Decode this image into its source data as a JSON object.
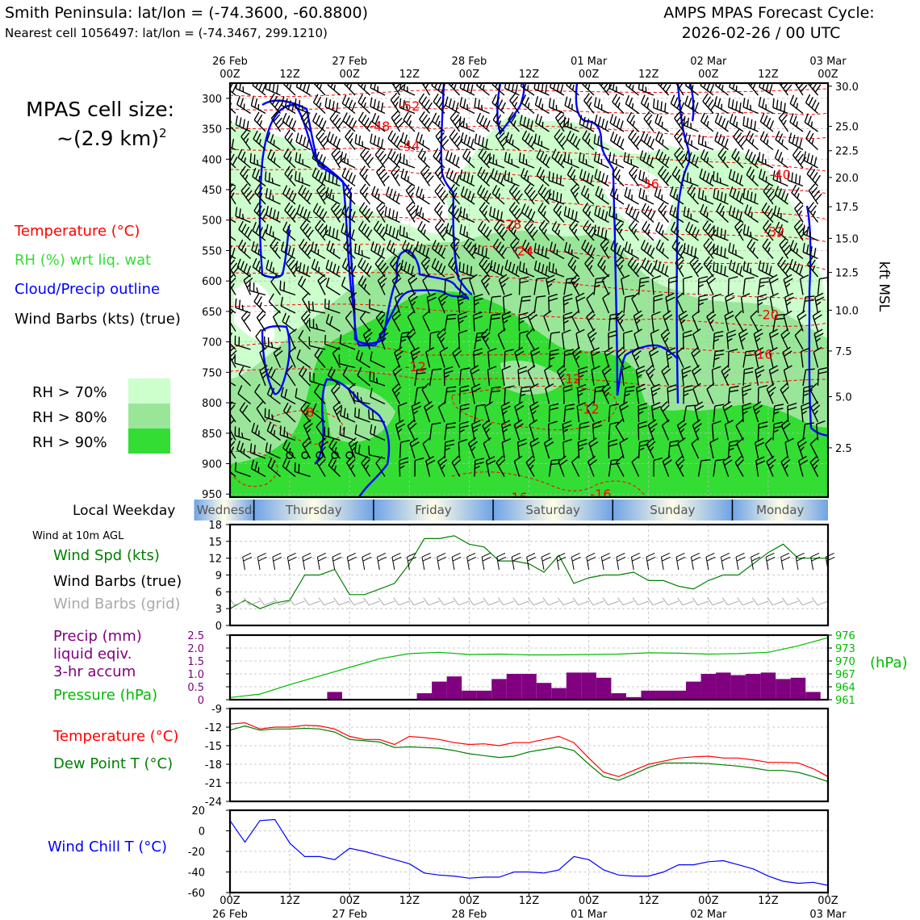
{
  "header": {
    "site_line": "Smith Peninsula: lat/lon = (-74.3600, -60.8800)",
    "cell_line": "Nearest cell 1056497: lat/lon = (-74.3467, 299.1210)",
    "cycle_line1": "AMPS MPAS Forecast Cycle:",
    "cycle_line2": "2026-02-26 / 00 UTC"
  },
  "legend": {
    "cell_size_line1": "MPAS cell size:",
    "cell_size_line2": "~(2.9 km)",
    "cell_size_sup": "2",
    "temperature": "Temperature (°C)",
    "rh": "RH (%) wrt liq. wat",
    "cloud": "Cloud/Precip outline",
    "wind": "Wind Barbs (kts) (true)",
    "rh70": "RH > 70%",
    "rh80": "RH > 80%",
    "rh90": "RH > 90%"
  },
  "colors": {
    "temp": "#ff0000",
    "rh_label": "#33dd33",
    "cloud": "#0000ff",
    "rh70": "#ccffcc",
    "rh80": "#99e699",
    "rh90": "#33dd33",
    "wind_green": "#008000",
    "precip": "#800080",
    "pressure": "#00bb00",
    "dewpoint": "#008000",
    "windchill": "#0000ff",
    "grid_barb": "#aaaaaa"
  },
  "time_axis": {
    "top_labels": [
      {
        "l1": "26 Feb",
        "l2": "00Z"
      },
      {
        "l1": "",
        "l2": "12Z"
      },
      {
        "l1": "27 Feb",
        "l2": "00Z"
      },
      {
        "l1": "",
        "l2": "12Z"
      },
      {
        "l1": "28 Feb",
        "l2": "00Z"
      },
      {
        "l1": "",
        "l2": "12Z"
      },
      {
        "l1": "01 Mar",
        "l2": "00Z"
      },
      {
        "l1": "",
        "l2": "12Z"
      },
      {
        "l1": "02 Mar",
        "l2": "00Z"
      },
      {
        "l1": "",
        "l2": "12Z"
      },
      {
        "l1": "03 Mar",
        "l2": "00Z"
      }
    ],
    "bottom_labels": [
      {
        "l1": "00Z",
        "l2": "26 Feb"
      },
      {
        "l1": "12Z",
        "l2": ""
      },
      {
        "l1": "00Z",
        "l2": "27 Feb"
      },
      {
        "l1": "12Z",
        "l2": ""
      },
      {
        "l1": "00Z",
        "l2": "28 Feb"
      },
      {
        "l1": "12Z",
        "l2": ""
      },
      {
        "l1": "00Z",
        "l2": "01 Mar"
      },
      {
        "l1": "12Z",
        "l2": ""
      },
      {
        "l1": "00Z",
        "l2": "02 Mar"
      },
      {
        "l1": "12Z",
        "l2": ""
      },
      {
        "l1": "00Z",
        "l2": "03 Mar"
      }
    ]
  },
  "weekday": {
    "label": "Local Weekday",
    "days": [
      {
        "name": "Wednesday",
        "start": -0.3,
        "end": 0.2
      },
      {
        "name": "Thursday",
        "start": 0.2,
        "end": 1.2
      },
      {
        "name": "Friday",
        "start": 1.2,
        "end": 2.2
      },
      {
        "name": "Saturday",
        "start": 2.2,
        "end": 3.2
      },
      {
        "name": "Sunday",
        "start": 3.2,
        "end": 4.2
      },
      {
        "name": "Monday",
        "start": 4.2,
        "end": 5.0
      }
    ]
  },
  "chart_data": [
    {
      "type": "heatmap",
      "title": "Vertical cross-section (time-height)",
      "ylabel_left": "Pressure (hPa)",
      "ylabel_right": "kft MSL",
      "ylim_hpa": [
        955,
        275
      ],
      "left_ticks": [
        300,
        350,
        400,
        450,
        500,
        550,
        600,
        650,
        700,
        750,
        800,
        850,
        900,
        950
      ],
      "right_ticks": [
        {
          "p": 280,
          "label": "30.0"
        },
        {
          "p": 346,
          "label": "25.0"
        },
        {
          "p": 386,
          "label": "22.5"
        },
        {
          "p": 430,
          "label": "20.0"
        },
        {
          "p": 478,
          "label": "17.5"
        },
        {
          "p": 530,
          "label": "15.0"
        },
        {
          "p": 586,
          "label": "12.5"
        },
        {
          "p": 648,
          "label": "10.0"
        },
        {
          "p": 715,
          "label": "7.5"
        },
        {
          "p": 790,
          "label": "5.0"
        },
        {
          "p": 874,
          "label": "2.5"
        }
      ],
      "temperature_contour_labels": [
        {
          "t": 1.5,
          "p": 312,
          "label": "-52"
        },
        {
          "t": 1.25,
          "p": 345,
          "label": "-48"
        },
        {
          "t": 1.5,
          "p": 377,
          "label": "-44"
        },
        {
          "t": 3.5,
          "p": 440,
          "label": "-36"
        },
        {
          "t": 4.6,
          "p": 425,
          "label": "-40"
        },
        {
          "t": 2.35,
          "p": 506,
          "label": "-28"
        },
        {
          "t": 4.55,
          "p": 518,
          "label": "-32"
        },
        {
          "t": 2.45,
          "p": 550,
          "label": "-24"
        },
        {
          "t": 4.5,
          "p": 655,
          "label": "-20"
        },
        {
          "t": 4.45,
          "p": 720,
          "label": "-16"
        },
        {
          "t": 1.55,
          "p": 740,
          "label": "-12"
        },
        {
          "t": 2.85,
          "p": 760,
          "label": "-12"
        },
        {
          "t": 3.0,
          "p": 810,
          "label": "-12"
        },
        {
          "t": 0.65,
          "p": 815,
          "label": "-8"
        },
        {
          "t": 2.4,
          "p": 955,
          "label": "-16"
        },
        {
          "t": 3.1,
          "p": 950,
          "label": "-16"
        }
      ]
    },
    {
      "type": "line",
      "title": "Wind at 10m AGL",
      "series_labels": [
        "Wind Spd (kts)",
        "Wind Barbs (true)",
        "Wind Barbs (grid)"
      ],
      "ylim": [
        0,
        18
      ],
      "yticks": [
        0,
        3,
        6,
        9,
        12,
        15,
        18
      ],
      "series": [
        {
          "name": "Wind Spd (kts)",
          "x_days": [
            0,
            0.125,
            0.25,
            0.375,
            0.5,
            0.625,
            0.75,
            0.875,
            1.0,
            1.125,
            1.25,
            1.375,
            1.5,
            1.625,
            1.75,
            1.875,
            2.0,
            2.125,
            2.25,
            2.375,
            2.5,
            2.625,
            2.75,
            2.875,
            3.0,
            3.125,
            3.25,
            3.375,
            3.5,
            3.625,
            3.75,
            3.875,
            4.0,
            4.125,
            4.25,
            4.375,
            4.5,
            4.625,
            4.75,
            4.875,
            5.0
          ],
          "values": [
            3,
            4.5,
            3,
            4,
            4.5,
            9,
            9,
            10,
            5.5,
            5.5,
            6.5,
            7.5,
            11,
            15.5,
            15.5,
            16,
            14.5,
            14,
            11.5,
            11.5,
            11,
            9.5,
            12.5,
            7.5,
            8.5,
            9,
            9,
            9.5,
            8,
            8,
            7,
            6.5,
            8,
            9,
            9,
            11,
            13,
            14.5,
            12,
            12,
            12
          ]
        }
      ]
    },
    {
      "type": "bar",
      "title": "Precip (mm) liquid eqiv. 3-hr accum / Pressure (hPa)",
      "precip_labels": [
        "Precip (mm)",
        "liquid eqiv.",
        "3-hr accum"
      ],
      "pressure_label": "Pressure (hPa)",
      "right_unit": "(hPa)",
      "ylim_precip": [
        0,
        2.5
      ],
      "yticks_precip": [
        "0",
        "0.5",
        "1.0",
        "1.5",
        "2.0",
        "2.5"
      ],
      "ylim_pressure": [
        961,
        976
      ],
      "yticks_pressure": [
        "961",
        "964",
        "967",
        "970",
        "973",
        "976"
      ],
      "precip_bars": {
        "x_days": [
          0.875,
          1.625,
          1.75,
          1.875,
          2.0,
          2.125,
          2.25,
          2.375,
          2.5,
          2.625,
          2.75,
          2.875,
          3.0,
          3.125,
          3.25,
          3.375,
          3.5,
          3.625,
          3.75,
          3.875,
          4.0,
          4.125,
          4.25,
          4.375,
          4.5,
          4.625,
          4.75,
          4.875
        ],
        "values": [
          0.3,
          0.25,
          0.7,
          0.9,
          0.35,
          0.35,
          0.8,
          1.0,
          1.0,
          0.65,
          0.45,
          1.05,
          1.05,
          0.85,
          0.25,
          0.1,
          0.35,
          0.35,
          0.35,
          0.7,
          1.0,
          1.05,
          0.95,
          1.0,
          1.05,
          0.8,
          0.85,
          0.3
        ]
      },
      "pressure_line": {
        "x_days": [
          0,
          0.25,
          0.5,
          0.75,
          1.0,
          1.25,
          1.5,
          1.75,
          2.0,
          2.25,
          2.5,
          2.75,
          3.0,
          3.25,
          3.5,
          3.75,
          4.0,
          4.25,
          4.5,
          4.75,
          5.0
        ],
        "values": [
          961.5,
          962.3,
          964.5,
          966.5,
          968.5,
          970.5,
          971.7,
          972,
          971.5,
          971.6,
          971.4,
          971.4,
          971.5,
          971.6,
          971.9,
          971.8,
          971.6,
          971.7,
          972.0,
          973.5,
          975.4
        ]
      }
    },
    {
      "type": "line",
      "title": "Temperature / Dew Point",
      "series_labels": [
        "Temperature (°C)",
        "Dew Point T (°C)"
      ],
      "ylim": [
        -24,
        -9
      ],
      "yticks": [
        -24,
        -21,
        -18,
        -15,
        -12,
        -9
      ],
      "series": [
        {
          "name": "Temperature (°C)",
          "x_days": [
            0,
            0.125,
            0.25,
            0.375,
            0.5,
            0.625,
            0.75,
            0.875,
            1.0,
            1.125,
            1.25,
            1.375,
            1.5,
            1.625,
            1.75,
            1.875,
            2.0,
            2.125,
            2.25,
            2.375,
            2.5,
            2.625,
            2.75,
            2.875,
            3.0,
            3.125,
            3.25,
            3.375,
            3.5,
            3.625,
            3.75,
            3.875,
            4.0,
            4.125,
            4.25,
            4.375,
            4.5,
            4.625,
            4.75,
            4.875,
            5.0
          ],
          "values": [
            -11.5,
            -11.3,
            -12.3,
            -12,
            -12,
            -11.7,
            -11.8,
            -12.3,
            -13.5,
            -14,
            -14,
            -14.8,
            -13.5,
            -13.7,
            -14,
            -14.5,
            -14.8,
            -14.7,
            -15,
            -14.5,
            -14.5,
            -14,
            -13.5,
            -14.5,
            -17,
            -19.3,
            -20,
            -19,
            -18,
            -17.5,
            -17,
            -16.8,
            -16.7,
            -17,
            -17,
            -17.3,
            -17.7,
            -17.7,
            -17.8,
            -18.7,
            -20
          ]
        },
        {
          "name": "Dew Point T (°C)",
          "x_days": [
            0,
            0.125,
            0.25,
            0.375,
            0.5,
            0.625,
            0.75,
            0.875,
            1.0,
            1.125,
            1.25,
            1.375,
            1.5,
            1.625,
            1.75,
            1.875,
            2.0,
            2.125,
            2.25,
            2.375,
            2.5,
            2.625,
            2.75,
            2.875,
            3.0,
            3.125,
            3.25,
            3.375,
            3.5,
            3.625,
            3.75,
            3.875,
            4.0,
            4.125,
            4.25,
            4.375,
            4.5,
            4.625,
            4.75,
            4.875,
            5.0
          ],
          "values": [
            -12.5,
            -11.8,
            -12.5,
            -12.3,
            -12.3,
            -12.2,
            -12.3,
            -12.8,
            -14,
            -14.2,
            -14.4,
            -15.3,
            -15.2,
            -15.3,
            -15.4,
            -15.8,
            -16.3,
            -16.6,
            -16.9,
            -16.7,
            -16,
            -15.6,
            -15.2,
            -15.8,
            -18,
            -20,
            -20.6,
            -19.6,
            -18.5,
            -17.8,
            -17.8,
            -17.8,
            -17.9,
            -18.1,
            -18.3,
            -18.6,
            -19,
            -19,
            -19.3,
            -20,
            -20.8
          ]
        }
      ]
    },
    {
      "type": "line",
      "title": "Wind Chill",
      "series_labels": [
        "Wind Chill T (°C)"
      ],
      "ylim": [
        -60,
        20
      ],
      "yticks": [
        -60,
        -40,
        -20,
        0,
        20
      ],
      "series": [
        {
          "name": "Wind Chill T (°C)",
          "x_days": [
            0,
            0.125,
            0.25,
            0.375,
            0.5,
            0.625,
            0.75,
            0.875,
            1.0,
            1.125,
            1.25,
            1.375,
            1.5,
            1.625,
            1.75,
            1.875,
            2.0,
            2.125,
            2.25,
            2.375,
            2.5,
            2.625,
            2.75,
            2.875,
            3.0,
            3.125,
            3.25,
            3.375,
            3.5,
            3.625,
            3.75,
            3.875,
            4.0,
            4.125,
            4.25,
            4.375,
            4.5,
            4.625,
            4.75,
            4.875,
            5.0
          ],
          "values": [
            10,
            -11,
            10,
            11,
            -12,
            -25,
            -25,
            -28,
            -17,
            -20,
            -24,
            -28,
            -32,
            -41,
            -43,
            -44,
            -46,
            -45,
            -45,
            -40,
            -40,
            -41,
            -38,
            -25,
            -28,
            -38,
            -43,
            -44,
            -44,
            -40,
            -33,
            -33,
            -30,
            -29,
            -33,
            -37,
            -44,
            -49,
            -51,
            -50,
            -53
          ]
        }
      ]
    }
  ]
}
